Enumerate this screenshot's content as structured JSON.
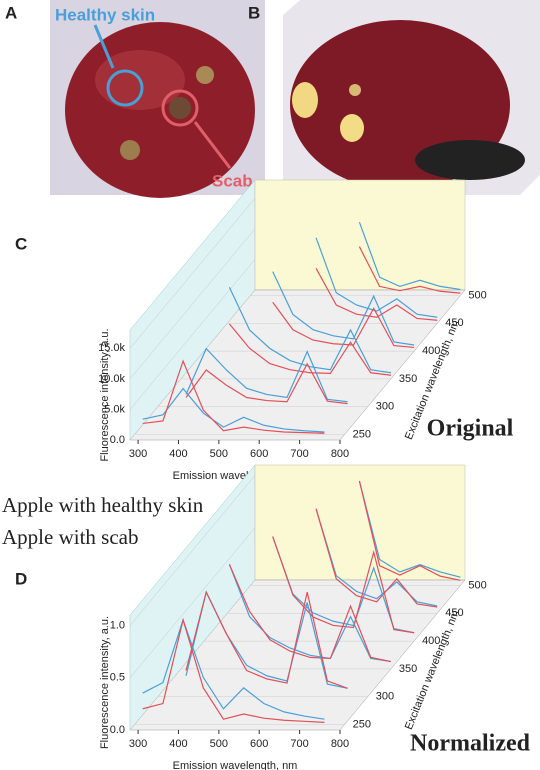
{
  "figure": {
    "panels": [
      "A",
      "B"
    ],
    "annotations": [
      "Healthy skin",
      "Scab"
    ]
  },
  "chart_data": [
    {
      "type": "waterfall",
      "panel": "C",
      "title": "Original",
      "x_label": "Emission wavelength, nm",
      "y_label": "Fluorescence intensity, a.u.",
      "z_label": "Excitation wavelength, nm",
      "x": [
        300,
        350,
        400,
        450,
        500,
        550,
        600,
        650,
        700,
        750,
        800
      ],
      "z": [
        250,
        300,
        350,
        400,
        450,
        500
      ],
      "xlim": [
        280,
        800
      ],
      "xticks": [
        300,
        400,
        500,
        600,
        700,
        800
      ],
      "ylim": [
        0,
        18000
      ],
      "yticks": [
        {
          "value": 0,
          "label": "0.0"
        },
        {
          "value": 5000,
          "label": "5.0k"
        },
        {
          "value": 10000,
          "label": "10.0k"
        },
        {
          "value": 15000,
          "label": "15.0k"
        }
      ],
      "zlim": [
        240,
        510
      ],
      "zticks": [
        250,
        300,
        350,
        400,
        450,
        500
      ],
      "series": [
        {
          "color": "#4a9fd8",
          "values": [
            [
              2500,
              3200,
              7500,
              3500,
              1200,
              2800,
              1500,
              900,
              600,
              400,
              null
            ],
            [
              null,
              2000,
              9500,
              6000,
              3000,
              2000,
              1500,
              9000,
              1200,
              800,
              null
            ],
            [
              null,
              null,
              15000,
              8000,
              5000,
              3000,
              2000,
              1500,
              8000,
              1500,
              1000
            ],
            [
              null,
              null,
              null,
              13000,
              6000,
              3500,
              2500,
              2000,
              9000,
              1500,
              1000
            ],
            [
              null,
              null,
              null,
              null,
              14000,
              5000,
              3000,
              2000,
              4000,
              1500,
              1000
            ],
            [
              null,
              null,
              null,
              null,
              null,
              12000,
              3000,
              1500,
              2500,
              1500,
              1000
            ]
          ]
        },
        {
          "color": "#e0505a",
          "values": [
            [
              1800,
              2200,
              12000,
              4000,
              600,
              1200,
              700,
              400,
              300,
              200,
              null
            ],
            [
              null,
              1500,
              6000,
              3500,
              1500,
              1000,
              800,
              7000,
              900,
              500,
              null
            ],
            [
              null,
              null,
              9000,
              5000,
              2500,
              1500,
              1000,
              900,
              6000,
              1000,
              600
            ],
            [
              null,
              null,
              null,
              8000,
              3500,
              1800,
              1200,
              1000,
              7000,
              900,
              600
            ],
            [
              null,
              null,
              null,
              null,
              9000,
              3000,
              1500,
              1000,
              3000,
              800,
              500
            ],
            [
              null,
              null,
              null,
              null,
              null,
              8000,
              1500,
              800,
              1500,
              700,
              400
            ]
          ]
        }
      ]
    },
    {
      "type": "waterfall",
      "panel": "D",
      "title": "Normalized",
      "x_label": "Emission wavelength, nm",
      "y_label": "Fluorescence intensity, a.u.",
      "z_label": "Excitation wavelength, nm",
      "x": [
        300,
        350,
        400,
        450,
        500,
        550,
        600,
        650,
        700,
        750,
        800
      ],
      "z": [
        250,
        300,
        350,
        400,
        450,
        500
      ],
      "xlim": [
        280,
        800
      ],
      "xticks": [
        300,
        400,
        500,
        600,
        700,
        800
      ],
      "ylim": [
        0,
        1.1
      ],
      "yticks": [
        {
          "value": 0,
          "label": "0.0"
        },
        {
          "value": 0.5,
          "label": "0.5"
        },
        {
          "value": 1,
          "label": "1.0"
        }
      ],
      "zlim": [
        240,
        510
      ],
      "zticks": [
        250,
        300,
        350,
        400,
        450,
        500
      ],
      "series": [
        {
          "name": "Apple with healthy skin",
          "color": "#4a9fd8",
          "values": [
            [
              0.3,
              0.4,
              1.0,
              0.45,
              0.15,
              0.35,
              0.2,
              0.12,
              0.08,
              0.05,
              null
            ],
            [
              null,
              0.2,
              1.0,
              0.6,
              0.3,
              0.2,
              0.15,
              0.9,
              0.12,
              0.08,
              null
            ],
            [
              null,
              null,
              1.0,
              0.5,
              0.3,
              0.2,
              0.13,
              0.1,
              0.5,
              0.1,
              0.07
            ],
            [
              null,
              null,
              null,
              1.0,
              0.45,
              0.27,
              0.19,
              0.15,
              0.7,
              0.12,
              0.08
            ],
            [
              null,
              null,
              null,
              null,
              1.0,
              0.36,
              0.21,
              0.14,
              0.3,
              0.11,
              0.07
            ],
            [
              null,
              null,
              null,
              null,
              null,
              1.0,
              0.25,
              0.13,
              0.2,
              0.13,
              0.08
            ]
          ]
        },
        {
          "name": "Apple with scab",
          "color": "#e0505a",
          "values": [
            [
              0.15,
              0.2,
              1.0,
              0.35,
              0.05,
              0.1,
              0.06,
              0.04,
              0.03,
              0.02,
              null
            ],
            [
              null,
              0.25,
              1.0,
              0.6,
              0.25,
              0.17,
              0.13,
              1.0,
              0.15,
              0.08,
              null
            ],
            [
              null,
              null,
              1.0,
              0.55,
              0.28,
              0.17,
              0.11,
              0.1,
              0.6,
              0.11,
              0.07
            ],
            [
              null,
              null,
              null,
              1.0,
              0.44,
              0.23,
              0.15,
              0.13,
              0.85,
              0.11,
              0.08
            ],
            [
              null,
              null,
              null,
              null,
              1.0,
              0.33,
              0.17,
              0.11,
              0.33,
              0.09,
              0.06
            ],
            [
              null,
              null,
              null,
              null,
              null,
              1.0,
              0.19,
              0.1,
              0.19,
              0.09,
              0.05
            ]
          ]
        }
      ]
    }
  ]
}
